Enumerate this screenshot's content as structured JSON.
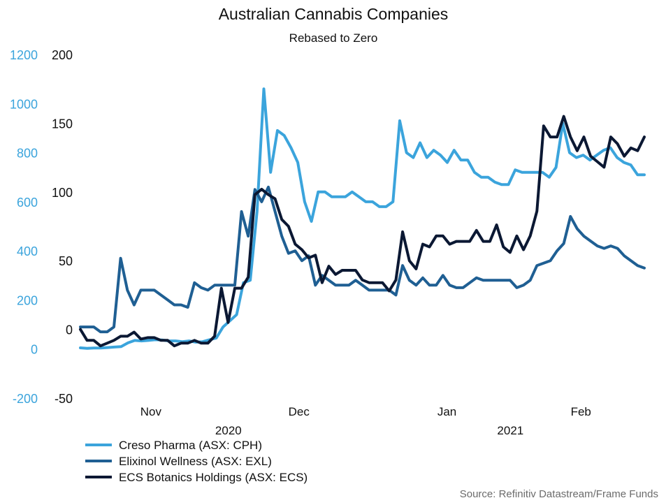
{
  "chart_data": {
    "type": "line",
    "title": "Australian Cannabis Companies",
    "subtitle": "Rebased to Zero",
    "source": "Source: Refinitiv Datastream/Frame Funds",
    "left_axis": {
      "ylim": [
        -200,
        1200
      ],
      "ticks": [
        "1200",
        "1000",
        "800",
        "600",
        "400",
        "200",
        "0",
        "-200"
      ],
      "tick_values": [
        1200,
        1000,
        800,
        600,
        400,
        200,
        0,
        -200
      ],
      "color": "#3ba4dc"
    },
    "right_axis": {
      "ylim": [
        -50,
        200
      ],
      "ticks": [
        "200",
        "150",
        "100",
        "50",
        "0",
        "-50"
      ],
      "tick_values": [
        200,
        150,
        100,
        50,
        0,
        -50
      ],
      "color": "#111111"
    },
    "x_axis": {
      "index_range": [
        0,
        80
      ],
      "months": [
        {
          "label": "Nov",
          "index": 10
        },
        {
          "label": "Dec",
          "index": 31
        },
        {
          "label": "Jan",
          "index": 52
        },
        {
          "label": "Feb",
          "index": 71
        }
      ],
      "years": [
        {
          "label": "2020",
          "index": 21
        },
        {
          "label": "2021",
          "index": 61
        }
      ]
    },
    "series": [
      {
        "name": "Creso Pharma (ASX: CPH)",
        "axis": "left",
        "color": "#3ba4dc",
        "values": [
          5,
          3,
          4,
          4,
          6,
          8,
          10,
          25,
          35,
          33,
          35,
          38,
          37,
          33,
          33,
          30,
          33,
          28,
          30,
          38,
          45,
          90,
          115,
          140,
          270,
          280,
          560,
          1060,
          720,
          890,
          870,
          820,
          760,
          600,
          520,
          640,
          640,
          620,
          620,
          620,
          640,
          620,
          600,
          600,
          580,
          580,
          600,
          930,
          800,
          780,
          840,
          780,
          810,
          790,
          760,
          810,
          770,
          770,
          720,
          700,
          700,
          680,
          670,
          670,
          730,
          720,
          720,
          720,
          720,
          700,
          740,
          920,
          800,
          780,
          790,
          770,
          790,
          810,
          820,
          780,
          760,
          750,
          710,
          710
        ]
      },
      {
        "name": "Elixinol Wellness (ASX: EXL)",
        "axis": "left",
        "color": "#1f5f93",
        "values": [
          90,
          90,
          90,
          70,
          70,
          90,
          370,
          240,
          180,
          240,
          240,
          240,
          220,
          200,
          180,
          180,
          170,
          270,
          250,
          240,
          260,
          260,
          260,
          260,
          560,
          460,
          650,
          600,
          660,
          560,
          460,
          390,
          400,
          360,
          380,
          260,
          300,
          280,
          260,
          260,
          260,
          280,
          260,
          240,
          240,
          240,
          240,
          220,
          340,
          280,
          260,
          290,
          260,
          260,
          300,
          260,
          250,
          250,
          270,
          290,
          280,
          280,
          280,
          280,
          280,
          250,
          260,
          280,
          340,
          350,
          360,
          400,
          430,
          540,
          490,
          460,
          440,
          420,
          410,
          420,
          410,
          380,
          360,
          340,
          330
        ]
      },
      {
        "name": "ECS Botanics Holdings (ASX: ECS)",
        "axis": "right",
        "color": "#0b1833",
        "values": [
          0,
          -8,
          -8,
          -12,
          -10,
          -8,
          -5,
          -5,
          -2,
          -7,
          -6,
          -6,
          -8,
          -8,
          -12,
          -10,
          -10,
          -8,
          -10,
          -10,
          -5,
          30,
          5,
          30,
          30,
          38,
          98,
          102,
          98,
          95,
          80,
          75,
          62,
          58,
          52,
          54,
          34,
          46,
          40,
          43,
          43,
          43,
          36,
          34,
          34,
          34,
          28,
          36,
          71,
          50,
          44,
          62,
          60,
          68,
          68,
          62,
          64,
          64,
          64,
          72,
          64,
          64,
          76,
          60,
          56,
          68,
          58,
          68,
          86,
          148,
          140,
          140,
          155,
          140,
          130,
          140,
          126,
          122,
          118,
          140,
          135,
          126,
          132,
          130,
          140
        ]
      }
    ]
  }
}
